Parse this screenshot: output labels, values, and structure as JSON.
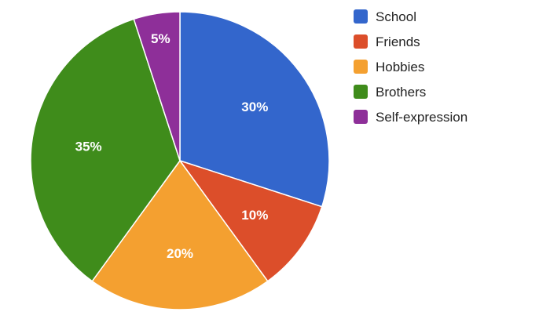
{
  "chart_data": {
    "type": "pie",
    "title": "",
    "start_angle_deg": 0,
    "direction": "clockwise",
    "slices": [
      {
        "label": "School",
        "value": 30,
        "display": "30%",
        "color": "#3366cc"
      },
      {
        "label": "Friends",
        "value": 10,
        "display": "10%",
        "color": "#dc4e2a"
      },
      {
        "label": "Hobbies",
        "value": 20,
        "display": "20%",
        "color": "#f4a030"
      },
      {
        "label": "Brothers",
        "value": 35,
        "display": "35%",
        "color": "#3f8c1b"
      },
      {
        "label": "Self-expression",
        "value": 5,
        "display": "5%",
        "color": "#8e2f99"
      }
    ],
    "legend": {
      "position": "right"
    }
  }
}
